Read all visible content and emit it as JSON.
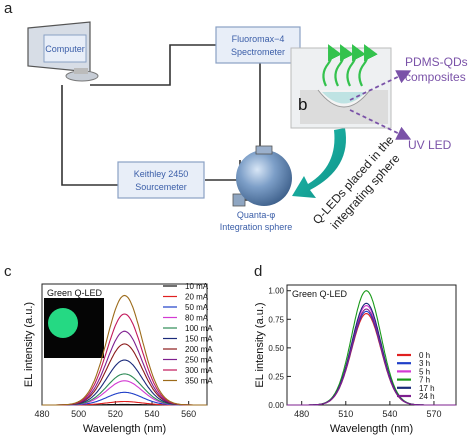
{
  "panel_labels": {
    "a": "a",
    "b": "b",
    "c": "c",
    "d": "d"
  },
  "schematic": {
    "computer_label": "Computer",
    "spectrometer_label_1": "Fluoromax−4",
    "spectrometer_label_2": "Spectrometer",
    "sourcemeter_label_1": "Keithley 2450",
    "sourcemeter_label_2": "Sourcemeter",
    "sphere_label_1": "Quanta-φ",
    "sphere_label_2": "Integration sphere",
    "composite_label_1": "PDMS-QDs",
    "composite_label_2": "composites",
    "uv_label": "UV LED",
    "arc_label_1": "Q-LEDs placed in the",
    "arc_label_2": "integrating sphere"
  },
  "colors": {
    "box_fill": "#e8eef8",
    "box_border": "#8aa1c4",
    "box_text": "#3b5ea8",
    "arrow_purple": "#7a52a8",
    "green_arrow": "#33c24d",
    "teal_arrow": "#1aa7a0"
  },
  "chart_data": [
    {
      "type": "line",
      "inset_label": "Green Q-LED",
      "xlabel": "Wavelength (nm)",
      "ylabel": "EL intensity (a.u.)",
      "xlim": [
        480,
        570
      ],
      "xticks": [
        "480",
        "500",
        "520",
        "540",
        "560"
      ],
      "xtick_values": [
        480,
        500,
        520,
        540,
        560
      ],
      "peak_center": 525,
      "peak_sigma": 9.5,
      "series": [
        {
          "name": "10 mA",
          "peak": 0.005,
          "color": "#111111"
        },
        {
          "name": "20 mA",
          "peak": 0.03,
          "color": "#e02020"
        },
        {
          "name": "50 mA",
          "peak": 0.11,
          "color": "#1f3fc8"
        },
        {
          "name": "80 mA",
          "peak": 0.21,
          "color": "#d33ad3"
        },
        {
          "name": "100 mA",
          "peak": 0.27,
          "color": "#2e8b57"
        },
        {
          "name": "150 mA",
          "peak": 0.39,
          "color": "#1b2a7a"
        },
        {
          "name": "200 mA",
          "peak": 0.53,
          "color": "#8b1a1a"
        },
        {
          "name": "250 mA",
          "peak": 0.64,
          "color": "#7e1f8f"
        },
        {
          "name": "300 mA",
          "peak": 0.79,
          "color": "#c2185b"
        },
        {
          "name": "350 mA",
          "peak": 0.95,
          "color": "#9c6b1a"
        }
      ]
    },
    {
      "type": "line",
      "inset_label": "Green Q-LED",
      "xlabel": "Wavelength (nm)",
      "ylabel": "EL intensity (a.u.)",
      "xlim": [
        470,
        585
      ],
      "ylim": [
        0,
        1.05
      ],
      "xticks": [
        "480",
        "510",
        "540",
        "570"
      ],
      "xtick_values": [
        480,
        510,
        540,
        570
      ],
      "yticks": [
        "0.00",
        "0.25",
        "0.50",
        "0.75",
        "1.00"
      ],
      "ytick_values": [
        0,
        0.25,
        0.5,
        0.75,
        1.0
      ],
      "peak_center": 524,
      "peak_sigma": 10,
      "series": [
        {
          "name": "0 h",
          "peak": 0.8,
          "color": "#e02020"
        },
        {
          "name": "3 h",
          "peak": 0.82,
          "color": "#1f3fc8"
        },
        {
          "name": "5 h",
          "peak": 0.87,
          "color": "#d33ad3"
        },
        {
          "name": "7 h",
          "peak": 1.0,
          "color": "#1a9a1a"
        },
        {
          "name": "17 h",
          "peak": 0.89,
          "color": "#1b2a7a"
        },
        {
          "name": "24 h",
          "peak": 0.84,
          "color": "#7e1f8f"
        }
      ]
    }
  ]
}
